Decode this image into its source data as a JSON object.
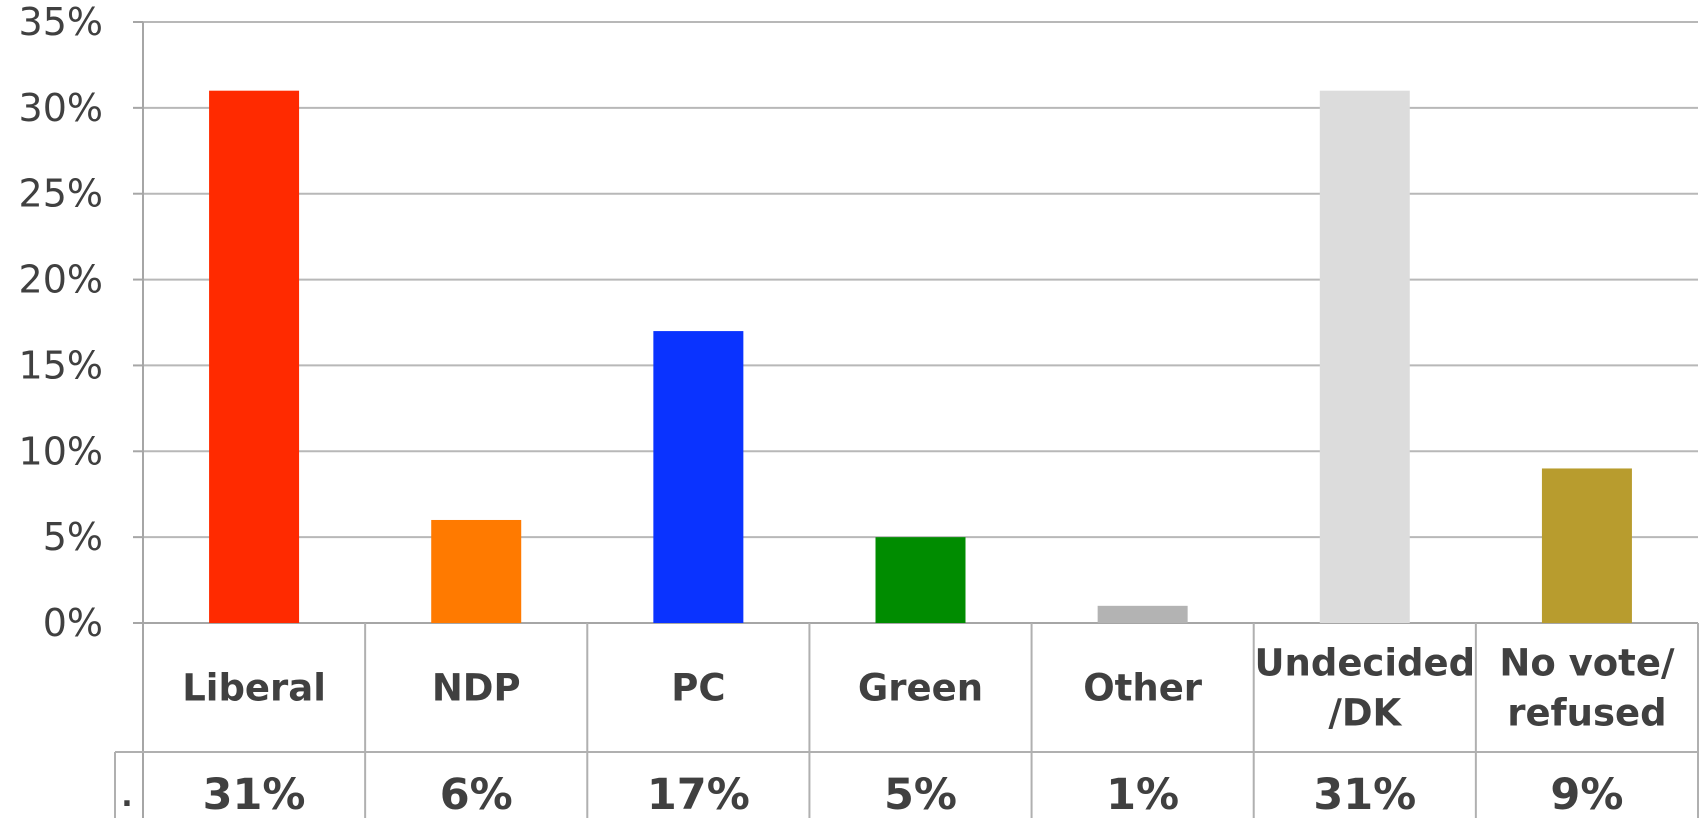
{
  "chart_data": {
    "type": "bar",
    "title": "",
    "xlabel": "",
    "ylabel": "",
    "categories": [
      [
        "Liberal"
      ],
      [
        "NDP"
      ],
      [
        "PC"
      ],
      [
        "Green"
      ],
      [
        "Other"
      ],
      [
        "Undecided",
        "/DK"
      ],
      [
        "No vote/",
        "refused"
      ]
    ],
    "values": [
      31,
      6,
      17,
      5,
      1,
      31,
      9
    ],
    "value_labels": [
      "31%",
      "6%",
      "17%",
      "5%",
      "1%",
      "31%",
      "9%"
    ],
    "colors": [
      "#ff2a00",
      "#ff7a00",
      "#0a33ff",
      "#008c00",
      "#b3b3b3",
      "#dcdcdc",
      "#b89c2e"
    ],
    "ylim": [
      0,
      35
    ],
    "yticks": [
      "0%",
      "5%",
      "10%",
      "15%",
      "20%",
      "25%",
      "30%",
      "35%"
    ],
    "grid": true,
    "legend": "none",
    "table_row_marker": "."
  }
}
